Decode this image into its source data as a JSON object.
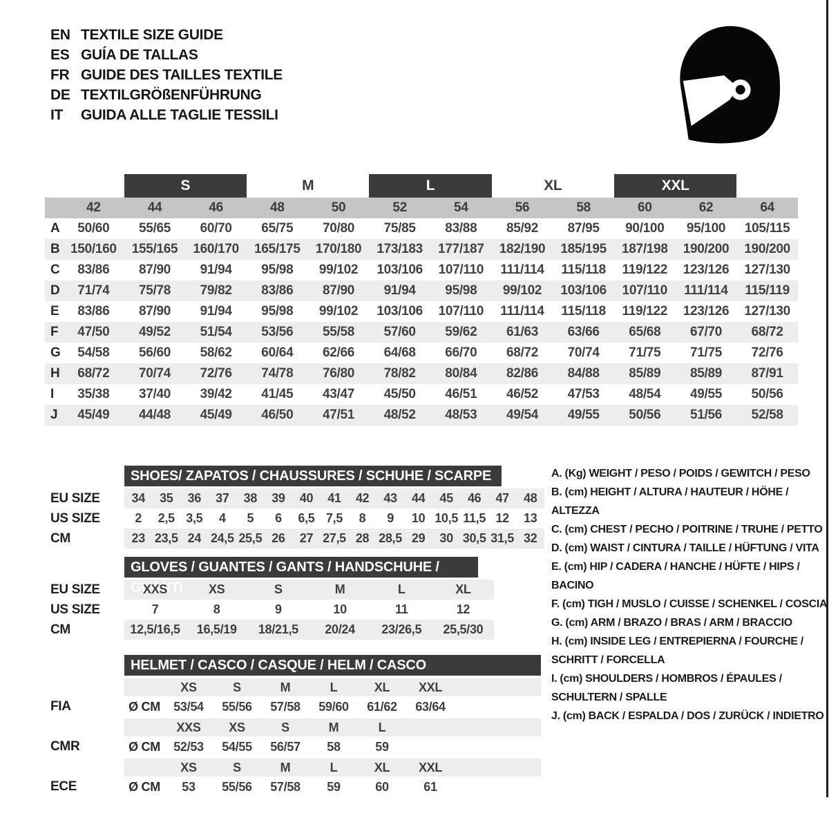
{
  "languages": [
    {
      "code": "EN",
      "label": "TEXTILE SIZE GUIDE"
    },
    {
      "code": "ES",
      "label": "GUÍA DE TALLAS"
    },
    {
      "code": "FR",
      "label": "GUIDE DES TAILLES TEXTILE"
    },
    {
      "code": "DE",
      "label": "TEXTILGRÖßENFÜHRUNG"
    },
    {
      "code": "IT",
      "label": "GUIDA ALLE TAGLIE TESSILI"
    }
  ],
  "helmet_icon": "racing-helmet-icon",
  "main_table": {
    "size_groups": [
      {
        "label": "S",
        "boxed": true
      },
      {
        "label": "M",
        "boxed": false
      },
      {
        "label": "L",
        "boxed": true
      },
      {
        "label": "XL",
        "boxed": false
      },
      {
        "label": "XXL",
        "boxed": true
      }
    ],
    "numeric_sizes": [
      "42",
      "44",
      "46",
      "48",
      "50",
      "52",
      "54",
      "56",
      "58",
      "60",
      "62",
      "64"
    ],
    "rows": [
      {
        "label": "A",
        "values": [
          "50/60",
          "55/65",
          "60/70",
          "65/75",
          "70/80",
          "75/85",
          "83/88",
          "85/92",
          "87/95",
          "90/100",
          "95/100",
          "105/115"
        ]
      },
      {
        "label": "B",
        "values": [
          "150/160",
          "155/165",
          "160/170",
          "165/175",
          "170/180",
          "173/183",
          "177/187",
          "182/190",
          "185/195",
          "187/198",
          "190/200",
          "190/200"
        ]
      },
      {
        "label": "C",
        "values": [
          "83/86",
          "87/90",
          "91/94",
          "95/98",
          "99/102",
          "103/106",
          "107/110",
          "111/114",
          "115/118",
          "119/122",
          "123/126",
          "127/130"
        ]
      },
      {
        "label": "D",
        "values": [
          "71/74",
          "75/78",
          "79/82",
          "83/86",
          "87/90",
          "91/94",
          "95/98",
          "99/102",
          "103/106",
          "107/110",
          "111/114",
          "115/119"
        ]
      },
      {
        "label": "E",
        "values": [
          "83/86",
          "87/90",
          "91/94",
          "95/98",
          "99/102",
          "103/106",
          "107/110",
          "111/114",
          "115/118",
          "119/122",
          "123/126",
          "127/130"
        ]
      },
      {
        "label": "F",
        "values": [
          "47/50",
          "49/52",
          "51/54",
          "53/56",
          "55/58",
          "57/60",
          "59/62",
          "61/63",
          "63/66",
          "65/68",
          "67/70",
          "68/72"
        ]
      },
      {
        "label": "G",
        "values": [
          "54/58",
          "56/60",
          "58/62",
          "60/64",
          "62/66",
          "64/68",
          "66/70",
          "68/72",
          "70/74",
          "71/75",
          "71/75",
          "72/76"
        ]
      },
      {
        "label": "H",
        "values": [
          "68/72",
          "70/74",
          "72/76",
          "74/78",
          "76/80",
          "78/82",
          "80/84",
          "82/86",
          "84/88",
          "85/89",
          "85/89",
          "87/91"
        ]
      },
      {
        "label": "I",
        "values": [
          "35/38",
          "37/40",
          "39/42",
          "41/45",
          "43/47",
          "45/50",
          "46/51",
          "46/52",
          "47/53",
          "48/54",
          "49/55",
          "50/56"
        ]
      },
      {
        "label": "J",
        "values": [
          "45/49",
          "44/48",
          "45/49",
          "46/50",
          "47/51",
          "48/52",
          "48/53",
          "49/54",
          "49/55",
          "50/56",
          "51/56",
          "52/58"
        ]
      }
    ]
  },
  "shoes": {
    "title": "SHOES/ ZAPATOS / CHAUSSURES / SCHUHE / SCARPE",
    "rows": [
      {
        "label": "EU SIZE",
        "values": [
          "34",
          "35",
          "36",
          "37",
          "38",
          "39",
          "40",
          "41",
          "42",
          "43",
          "44",
          "45",
          "46",
          "47",
          "48"
        ]
      },
      {
        "label": "US SIZE",
        "values": [
          "2",
          "2,5",
          "3,5",
          "4",
          "5",
          "6",
          "6,5",
          "7,5",
          "8",
          "9",
          "10",
          "10,5",
          "11,5",
          "12",
          "13"
        ]
      },
      {
        "label": "CM",
        "values": [
          "23",
          "23,5",
          "24",
          "24,5",
          "25,5",
          "26",
          "27",
          "27,5",
          "28",
          "28,5",
          "29",
          "30",
          "30,5",
          "31,5",
          "32"
        ]
      }
    ]
  },
  "gloves": {
    "title": "GLOVES / GUANTES / GANTS / HANDSCHUHE / GUANTI",
    "rows": [
      {
        "label": "EU SIZE",
        "values": [
          "XXS",
          "XS",
          "S",
          "M",
          "L",
          "XL"
        ]
      },
      {
        "label": "US SIZE",
        "values": [
          "7",
          "8",
          "9",
          "10",
          "11",
          "12"
        ]
      },
      {
        "label": "CM",
        "values": [
          "12,5/16,5",
          "16,5/19",
          "18/21,5",
          "20/24",
          "23/26,5",
          "25,5/30"
        ]
      }
    ]
  },
  "helmet": {
    "title": "HELMET / CASCO / CASQUE / HELM / CASCO",
    "blocks": [
      {
        "label": "FIA",
        "unit": "Ø CM",
        "sizes": [
          "XS",
          "S",
          "M",
          "L",
          "XL",
          "XXL"
        ],
        "values": [
          "53/54",
          "55/56",
          "57/58",
          "59/60",
          "61/62",
          "63/64"
        ]
      },
      {
        "label": "CMR",
        "unit": "Ø CM",
        "sizes": [
          "XXS",
          "XS",
          "S",
          "M",
          "L",
          ""
        ],
        "values": [
          "52/53",
          "54/55",
          "56/57",
          "58",
          "59",
          ""
        ]
      },
      {
        "label": "ECE",
        "unit": "Ø CM",
        "sizes": [
          "XS",
          "S",
          "M",
          "L",
          "XL",
          "XXL"
        ],
        "values": [
          "53",
          "55/56",
          "57/58",
          "59",
          "60",
          "61"
        ]
      }
    ]
  },
  "legend": [
    "A. (Kg) WEIGHT / PESO / POIDS / GEWITCH / PESO",
    "B. (cm) HEIGHT / ALTURA / HAUTEUR / HÖHE / ALTEZZA",
    "C. (cm) CHEST / PECHO / POITRINE / TRUHE / PETTO",
    "D. (cm) WAIST / CINTURA / TAILLE / HÜFTUNG / VITA",
    "E. (cm) HIP / CADERA / HANCHE / HÜFTE / HIPS /  BACINO",
    "F. (cm) TIGH / MUSLO / CUISSE / SCHENKEL / COSCIA",
    "G. (cm) ARM  / BRAZO / BRAS / ARM / BRACCIO",
    "H. (cm) INSIDE LEG / ENTREPIERNA / FOURCHE / SCHRITT / FORCELLA",
    "I.  (cm) SHOULDERS / HOMBROS / ÉPAULES / SCHULTERN / SPALLE",
    "J. (cm) BACK / ESPALDA / DOS / ZURÜCK / INDIETRO"
  ],
  "colors": {
    "dark_bar": "#3b3b3b",
    "numeric_band": "#c5c5c5",
    "stripe": "#ededed",
    "text": "#1d1d1d"
  }
}
